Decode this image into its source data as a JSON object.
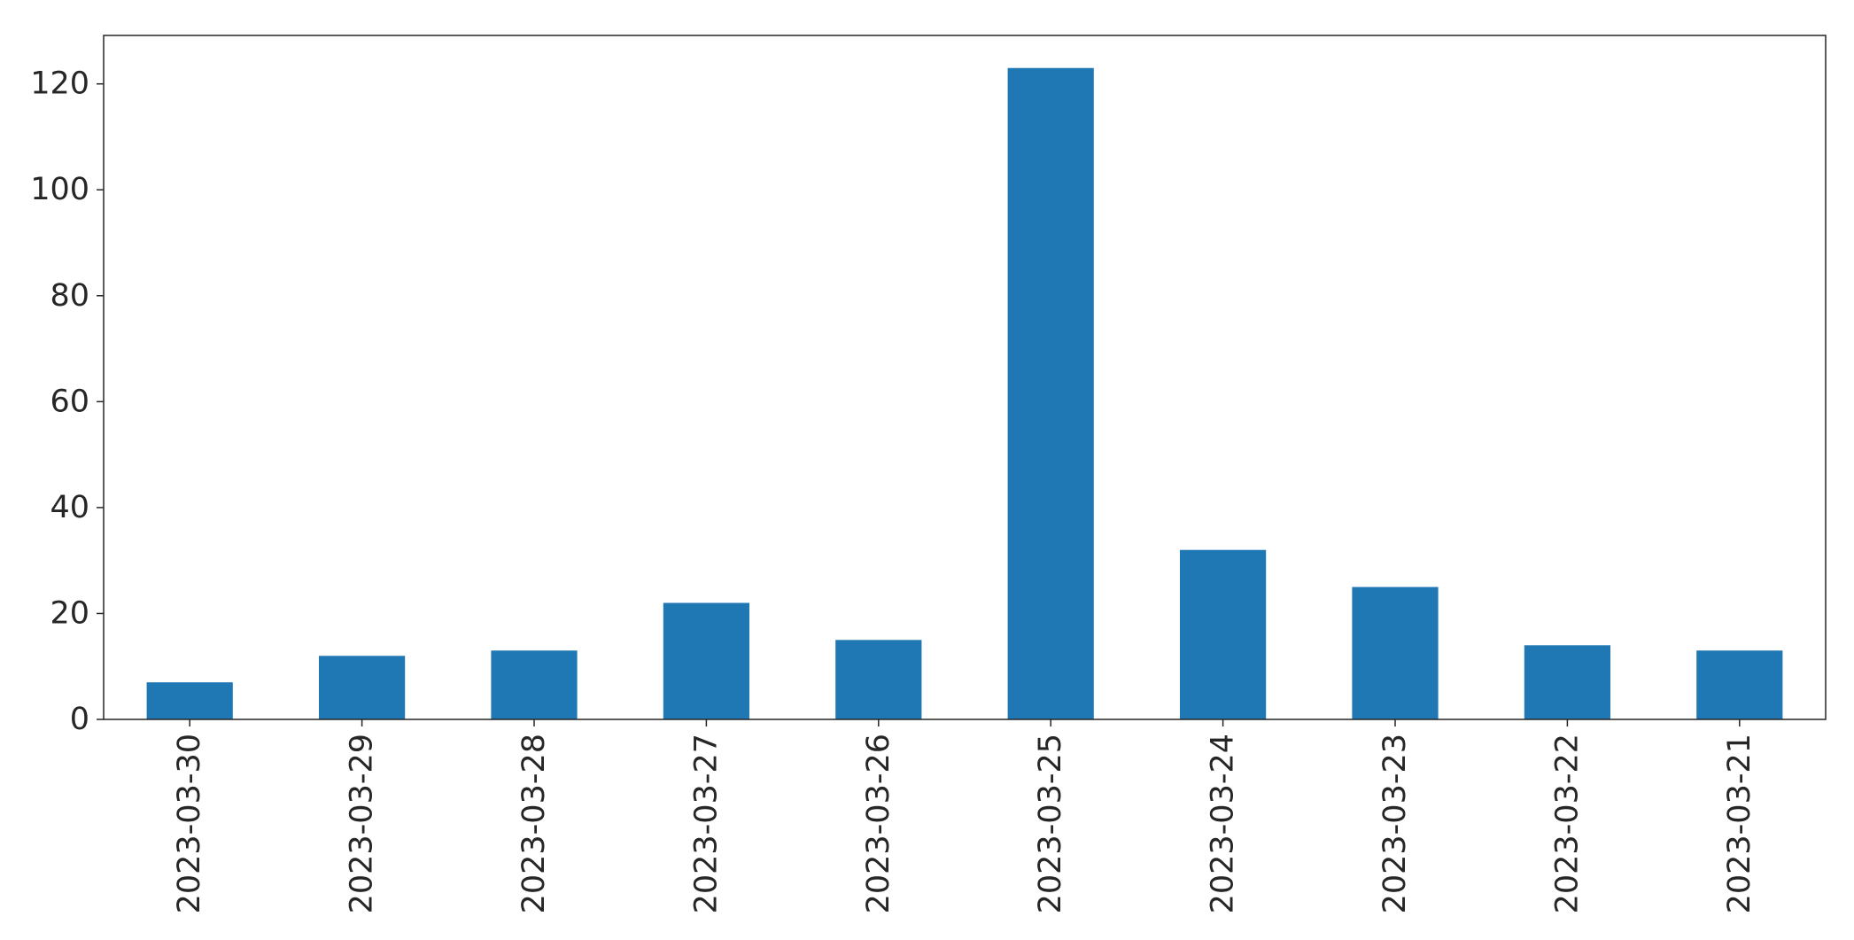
{
  "chart_data": {
    "type": "bar",
    "title": "",
    "xlabel": "",
    "ylabel": "",
    "categories": [
      "2023-03-30",
      "2023-03-29",
      "2023-03-28",
      "2023-03-27",
      "2023-03-26",
      "2023-03-25",
      "2023-03-24",
      "2023-03-23",
      "2023-03-22",
      "2023-03-21"
    ],
    "values": [
      7,
      12,
      13,
      22,
      15,
      123,
      32,
      25,
      14,
      13
    ],
    "ylim": [
      0,
      129.15
    ],
    "yticks": [
      0,
      20,
      40,
      60,
      80,
      100,
      120
    ],
    "bar_color": "#1f77b4",
    "grid": false,
    "legend": "none"
  }
}
